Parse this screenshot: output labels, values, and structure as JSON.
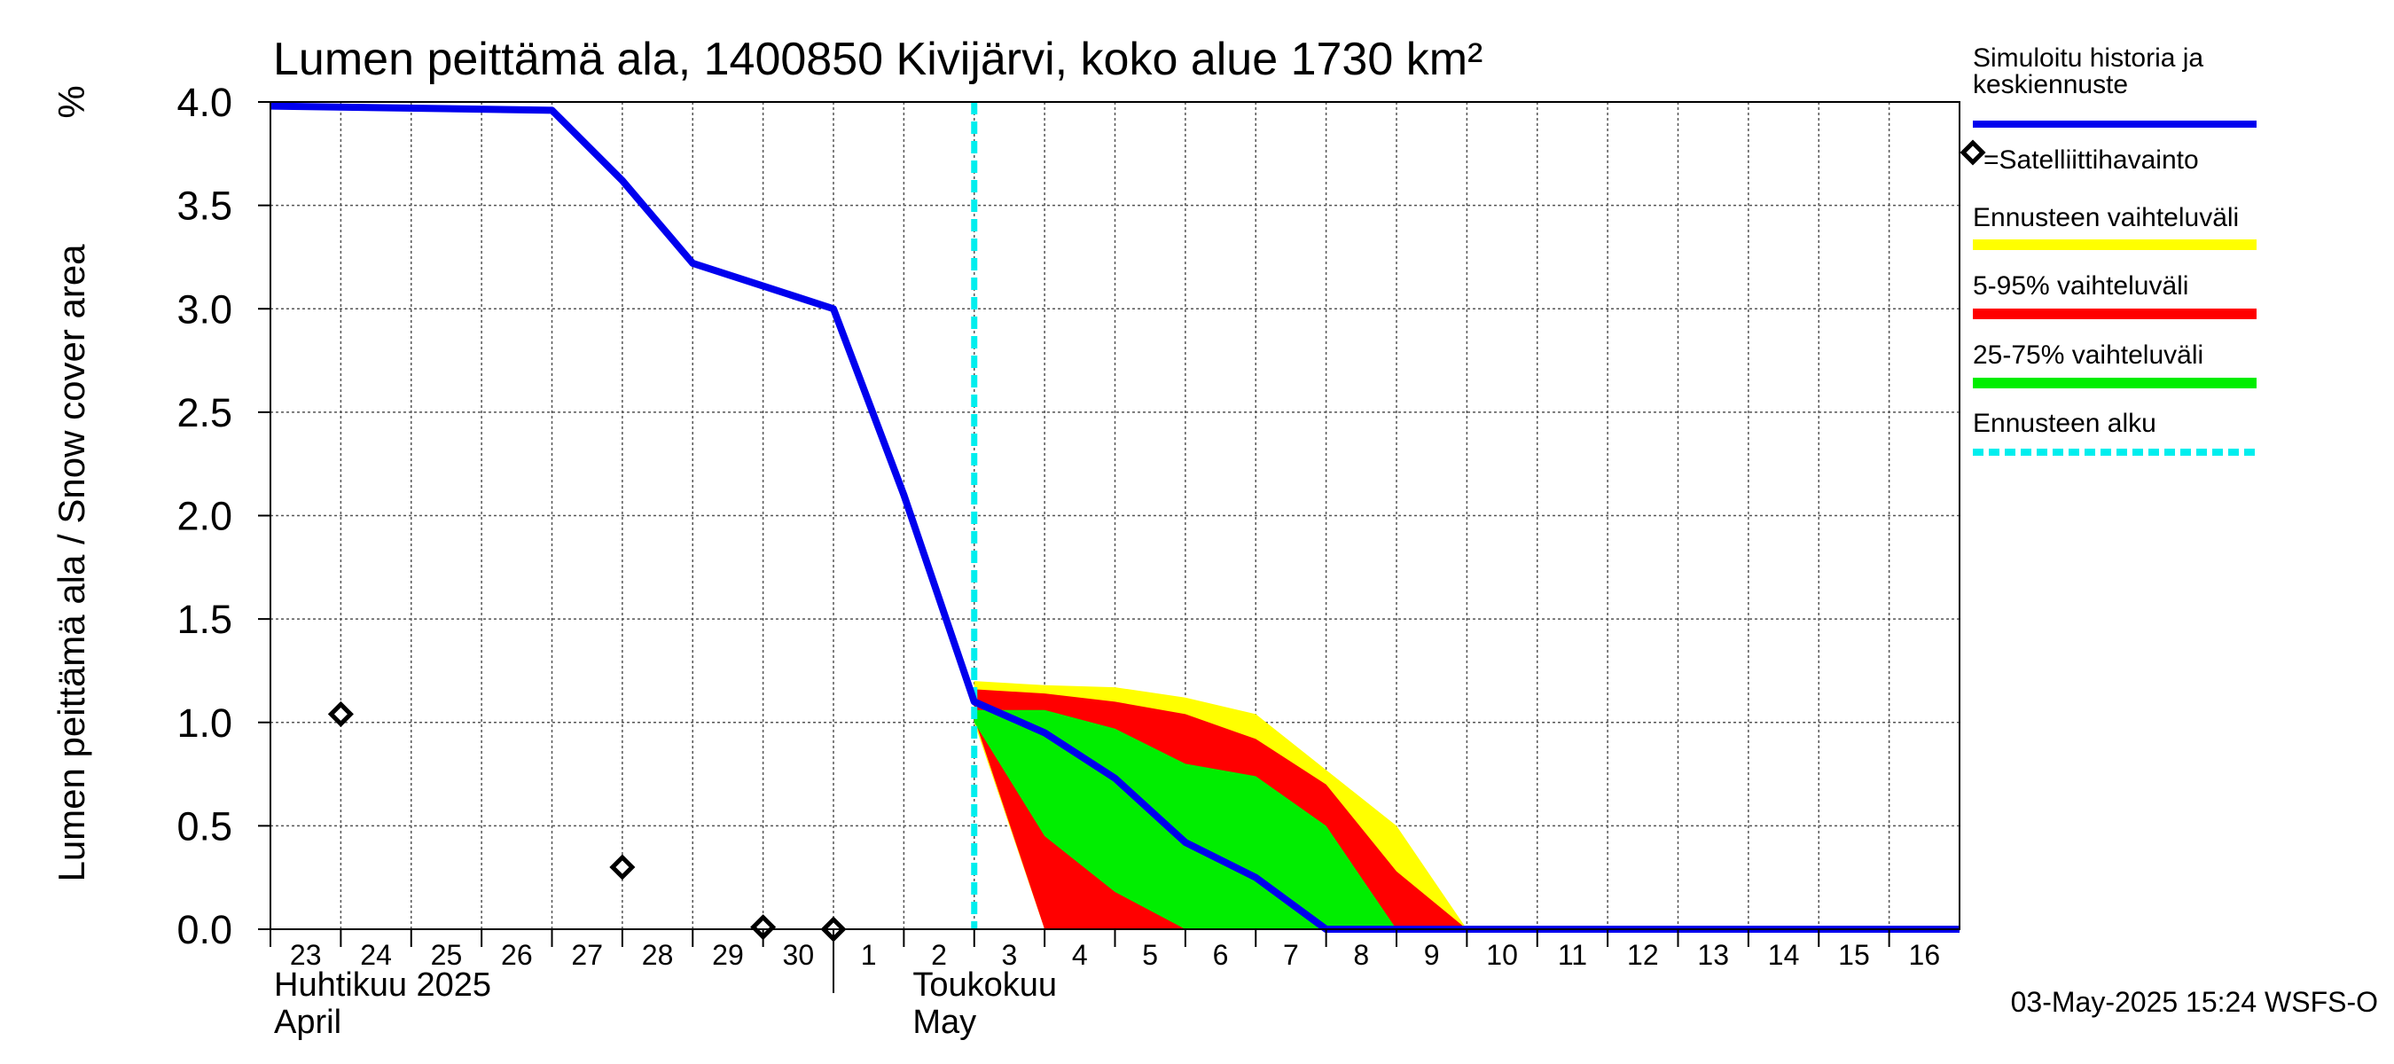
{
  "chart_data": {
    "type": "area",
    "title": "Lumen peittämä ala, 1400850 Kivijärvi, koko alue 1730 km²",
    "ylabel": "Lumen peittämä ala / Snow cover area",
    "yunit": "%",
    "ylim": [
      0,
      4.0
    ],
    "yticks": [
      "0.0",
      "0.5",
      "1.0",
      "1.5",
      "2.0",
      "2.5",
      "3.0",
      "3.5",
      "4.0"
    ],
    "xlim": [
      "2025-04-23",
      "2025-05-17"
    ],
    "xticks": [
      "23",
      "24",
      "25",
      "26",
      "27",
      "28",
      "29",
      "30",
      "1",
      "2",
      "3",
      "4",
      "5",
      "6",
      "7",
      "8",
      "9",
      "10",
      "11",
      "12",
      "13",
      "14",
      "15",
      "16"
    ],
    "month_labels": [
      {
        "fi": "Huhtikuu  2025",
        "en": "April"
      },
      {
        "fi": "Toukokuu",
        "en": "May"
      }
    ],
    "grid": true,
    "forecast_start": "2025-05-03",
    "colors": {
      "history": "#0000ee",
      "range_full": "#ffff00",
      "range_5_95": "#ff0000",
      "range_25_75": "#00ee00",
      "forecast_start": "#00eeee",
      "observation": "#000000"
    },
    "history": {
      "name": "Simuloitu historia ja keskiennuste",
      "x": [
        "2025-04-23",
        "2025-04-27",
        "2025-04-28",
        "2025-04-29",
        "2025-04-30",
        "2025-05-01",
        "2025-05-02",
        "2025-05-03",
        "2025-05-04",
        "2025-05-05",
        "2025-05-06",
        "2025-05-07",
        "2025-05-08",
        "2025-05-17"
      ],
      "y": [
        3.98,
        3.96,
        3.62,
        3.22,
        3.11,
        3.0,
        2.1,
        1.1,
        0.95,
        0.73,
        0.42,
        0.25,
        0.0,
        0.0
      ]
    },
    "observations": {
      "name": "=Satelliittihavainto",
      "x": [
        "2025-04-24",
        "2025-04-28",
        "2025-04-30",
        "2025-05-01"
      ],
      "y": [
        1.04,
        0.3,
        0.01,
        0.0
      ]
    },
    "bands": [
      {
        "name": "Ennusteen vaihteluväli",
        "x": [
          "2025-05-03",
          "2025-05-04",
          "2025-05-05",
          "2025-05-06",
          "2025-05-07",
          "2025-05-08",
          "2025-05-09",
          "2025-05-10"
        ],
        "upper": [
          1.2,
          1.18,
          1.17,
          1.12,
          1.04,
          0.77,
          0.5,
          0.0
        ],
        "lower": [
          1.0,
          0.0,
          0.0,
          0.0,
          0.0,
          0.0,
          0.0,
          0.0
        ]
      },
      {
        "name": "5-95% vaihteluväli",
        "x": [
          "2025-05-03",
          "2025-05-04",
          "2025-05-05",
          "2025-05-06",
          "2025-05-07",
          "2025-05-08",
          "2025-05-09",
          "2025-05-10"
        ],
        "upper": [
          1.16,
          1.14,
          1.1,
          1.04,
          0.92,
          0.7,
          0.28,
          0.0
        ],
        "lower": [
          1.02,
          0.0,
          0.0,
          0.0,
          0.0,
          0.0,
          0.0,
          0.0
        ]
      },
      {
        "name": "25-75% vaihteluväli",
        "x": [
          "2025-05-03",
          "2025-05-04",
          "2025-05-05",
          "2025-05-06",
          "2025-05-07",
          "2025-05-08",
          "2025-05-09"
        ],
        "upper": [
          1.06,
          1.06,
          0.97,
          0.8,
          0.74,
          0.5,
          0.0
        ],
        "lower": [
          1.0,
          0.45,
          0.18,
          0.0,
          0.0,
          0.0,
          0.0
        ]
      }
    ],
    "legend": [
      {
        "label": "Simuloitu historia ja keskiennuste",
        "kind": "history"
      },
      {
        "label": "=Satelliittihavainto",
        "kind": "observation"
      },
      {
        "label": "Ennusteen vaihteluväli",
        "kind": "range_full"
      },
      {
        "label": "5-95% vaihteluväli",
        "kind": "range_5_95"
      },
      {
        "label": "25-75% vaihteluväli",
        "kind": "range_25_75"
      },
      {
        "label": "Ennusteen alku",
        "kind": "forecast_start"
      }
    ],
    "footer": "03-May-2025 15:24 WSFS-O"
  }
}
